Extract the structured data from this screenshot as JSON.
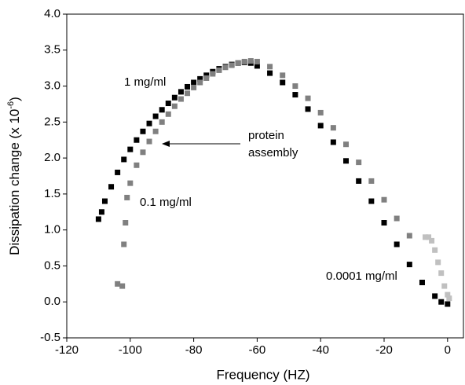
{
  "chart_data": {
    "type": "scatter",
    "x_label": "Frequency (HZ)",
    "y_label": "Dissipation change (x 10",
    "y_label_exponent": "-6",
    "y_label_end": ")",
    "xlim": [
      -120,
      5
    ],
    "ylim": [
      -0.5,
      4.0
    ],
    "xticks": [
      -120,
      -100,
      -80,
      -60,
      -40,
      -20,
      0
    ],
    "yticks": [
      {
        "value": -0.5,
        "label": "-0.5"
      },
      {
        "value": 0,
        "label": "0.0"
      },
      0.5,
      {
        "value": 1,
        "label": "1.0"
      },
      1.5,
      {
        "value": 2,
        "label": "2.0"
      },
      2.5,
      {
        "value": 3,
        "label": "3.0"
      },
      3.5,
      {
        "value": 4,
        "label": "4.0"
      }
    ],
    "series": [
      {
        "name": "1 mg/ml",
        "color": "#000000",
        "x": [
          -110,
          -109,
          -108,
          -106,
          -104,
          -102,
          -100,
          -98,
          -96,
          -94,
          -92,
          -90,
          -88,
          -86,
          -84,
          -82,
          -80,
          -78,
          -76,
          -74,
          -72,
          -70,
          -68,
          -66,
          -64,
          -62,
          -60,
          -56,
          -52,
          -48,
          -44,
          -40,
          -36,
          -32,
          -28,
          -24,
          -20,
          -16,
          -12,
          -8,
          -4,
          -2,
          0
        ],
        "y": [
          1.15,
          1.25,
          1.4,
          1.6,
          1.8,
          1.98,
          2.12,
          2.25,
          2.37,
          2.48,
          2.58,
          2.67,
          2.76,
          2.84,
          2.92,
          2.99,
          3.05,
          3.1,
          3.15,
          3.2,
          3.24,
          3.27,
          3.3,
          3.32,
          3.33,
          3.32,
          3.28,
          3.18,
          3.05,
          2.88,
          2.68,
          2.45,
          2.22,
          1.96,
          1.68,
          1.4,
          1.1,
          0.8,
          0.52,
          0.27,
          0.08,
          0,
          -0.03
        ]
      },
      {
        "name": "0.1 mg/ml",
        "color": "#808080",
        "x": [
          -104,
          -102.5,
          -102,
          -101.5,
          -101,
          -100,
          -98,
          -96,
          -94,
          -92,
          -90,
          -88,
          -86,
          -84,
          -82,
          -80,
          -78,
          -76,
          -74,
          -72,
          -70,
          -68,
          -66,
          -64,
          -62,
          -60,
          -56,
          -52,
          -48,
          -44,
          -40,
          -36,
          -32,
          -28,
          -24,
          -20,
          -16,
          -12
        ],
        "y": [
          0.25,
          0.22,
          0.8,
          1.1,
          1.45,
          1.65,
          1.9,
          2.08,
          2.23,
          2.37,
          2.5,
          2.61,
          2.72,
          2.82,
          2.9,
          2.98,
          3.05,
          3.11,
          3.17,
          3.22,
          3.26,
          3.29,
          3.32,
          3.34,
          3.35,
          3.34,
          3.27,
          3.15,
          3.0,
          2.83,
          2.63,
          2.42,
          2.19,
          1.94,
          1.68,
          1.42,
          1.16,
          0.92
        ]
      },
      {
        "name": "0.0001 mg/ml",
        "color": "#c0c0c0",
        "x": [
          -7,
          -6,
          -5,
          -4,
          -3,
          -2,
          -1,
          0,
          0.5
        ],
        "y": [
          0.9,
          0.9,
          0.85,
          0.72,
          0.55,
          0.4,
          0.22,
          0.1,
          0.05
        ]
      }
    ],
    "annotations": [
      {
        "lines": [
          "protein",
          "assembly"
        ]
      }
    ]
  }
}
